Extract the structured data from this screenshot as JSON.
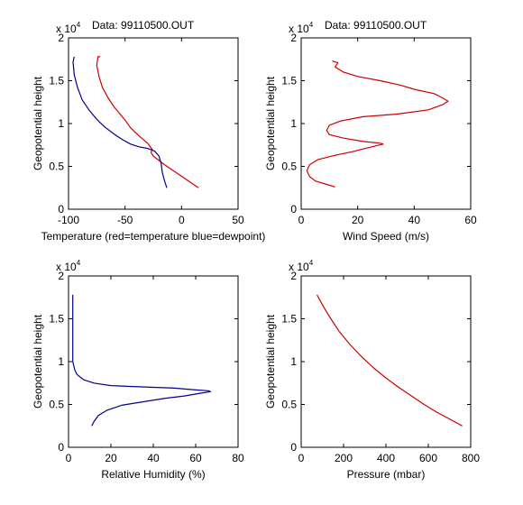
{
  "chart_data": [
    {
      "type": "line",
      "title": "Data: 99110500.OUT",
      "exponent_label": "x 10",
      "exponent_power": "4",
      "xlabel": "Temperature (red=temperature blue=dewpoint)",
      "ylabel": "Geopotential height",
      "xlim": [
        -100,
        50
      ],
      "ylim": [
        0,
        2
      ],
      "xticks": [
        -100,
        -50,
        0,
        50
      ],
      "yticks": [
        0,
        0.5,
        1,
        1.5,
        2
      ],
      "grid": false,
      "series": [
        {
          "color": "#cc0000",
          "x": [
            15,
            5,
            -5,
            -15,
            -25,
            -27,
            -26,
            -30,
            -38,
            -45,
            -50,
            -55,
            -60,
            -65,
            -70,
            -73,
            -75,
            -74,
            -72
          ],
          "y": [
            0.25,
            0.34,
            0.43,
            0.52,
            0.62,
            0.66,
            0.7,
            0.77,
            0.86,
            0.95,
            1.04,
            1.12,
            1.2,
            1.3,
            1.42,
            1.55,
            1.68,
            1.78,
            1.78
          ]
        },
        {
          "color": "#00008b",
          "x": [
            -13,
            -15,
            -17,
            -18,
            -20,
            -24,
            -30,
            -38,
            -45,
            -52,
            -60,
            -68,
            -75,
            -82,
            -88,
            -92,
            -95,
            -96,
            -95
          ],
          "y": [
            0.25,
            0.33,
            0.43,
            0.53,
            0.62,
            0.68,
            0.71,
            0.73,
            0.76,
            0.81,
            0.88,
            0.96,
            1.05,
            1.16,
            1.28,
            1.42,
            1.57,
            1.72,
            1.78
          ]
        }
      ]
    },
    {
      "type": "line",
      "title": "Data: 99110500.OUT",
      "exponent_label": "x 10",
      "exponent_power": "4",
      "xlabel": "Wind Speed (m/s)",
      "ylabel": "Geopotential height",
      "xlim": [
        0,
        60
      ],
      "ylim": [
        0,
        2
      ],
      "xticks": [
        0,
        20,
        40,
        60
      ],
      "yticks": [
        0,
        0.5,
        1,
        1.5,
        2
      ],
      "grid": false,
      "series": [
        {
          "color": "#cc0000",
          "x": [
            12,
            8,
            5,
            3,
            2,
            3,
            6,
            12,
            18,
            24,
            29,
            28,
            22,
            15,
            10,
            9,
            10,
            14,
            22,
            34,
            45,
            50,
            52,
            50,
            47,
            40,
            35,
            28,
            20,
            15,
            12,
            13,
            11
          ],
          "y": [
            0.26,
            0.3,
            0.33,
            0.38,
            0.45,
            0.52,
            0.58,
            0.63,
            0.67,
            0.72,
            0.76,
            0.77,
            0.79,
            0.83,
            0.87,
            0.92,
            0.98,
            1.03,
            1.08,
            1.11,
            1.16,
            1.22,
            1.26,
            1.3,
            1.35,
            1.4,
            1.45,
            1.5,
            1.55,
            1.6,
            1.66,
            1.71,
            1.73
          ]
        }
      ]
    },
    {
      "type": "line",
      "title": "",
      "exponent_label": "x 10",
      "exponent_power": "4",
      "xlabel": "Relative Humidity (%)",
      "ylabel": "Geopotential height",
      "xlim": [
        0,
        80
      ],
      "ylim": [
        0,
        2
      ],
      "xticks": [
        0,
        20,
        40,
        60,
        80
      ],
      "yticks": [
        0,
        0.5,
        1,
        1.5,
        2
      ],
      "grid": false,
      "series": [
        {
          "color": "#00008b",
          "x": [
            11,
            12,
            14,
            18,
            25,
            35,
            45,
            55,
            62,
            67,
            66,
            60,
            50,
            40,
            30,
            20,
            12,
            7,
            4,
            3,
            2,
            2,
            2,
            2,
            2
          ],
          "y": [
            0.25,
            0.3,
            0.37,
            0.43,
            0.49,
            0.53,
            0.57,
            0.6,
            0.63,
            0.65,
            0.66,
            0.67,
            0.69,
            0.7,
            0.71,
            0.72,
            0.75,
            0.79,
            0.85,
            0.9,
            1.0,
            1.2,
            1.4,
            1.6,
            1.78
          ]
        }
      ]
    },
    {
      "type": "line",
      "title": "",
      "exponent_label": "x 10",
      "exponent_power": "4",
      "xlabel": "Pressure (mbar)",
      "ylabel": "Geopotential height",
      "xlim": [
        0,
        800
      ],
      "ylim": [
        0,
        2
      ],
      "xticks": [
        0,
        200,
        400,
        600,
        800
      ],
      "yticks": [
        0,
        0.5,
        1,
        1.5,
        2
      ],
      "grid": false,
      "series": [
        {
          "color": "#cc0000",
          "x": [
            760,
            700,
            640,
            580,
            520,
            460,
            400,
            340,
            280,
            230,
            180,
            140,
            110,
            85,
            75
          ],
          "y": [
            0.25,
            0.33,
            0.41,
            0.5,
            0.6,
            0.7,
            0.81,
            0.93,
            1.07,
            1.2,
            1.35,
            1.5,
            1.62,
            1.73,
            1.78
          ]
        }
      ]
    }
  ]
}
